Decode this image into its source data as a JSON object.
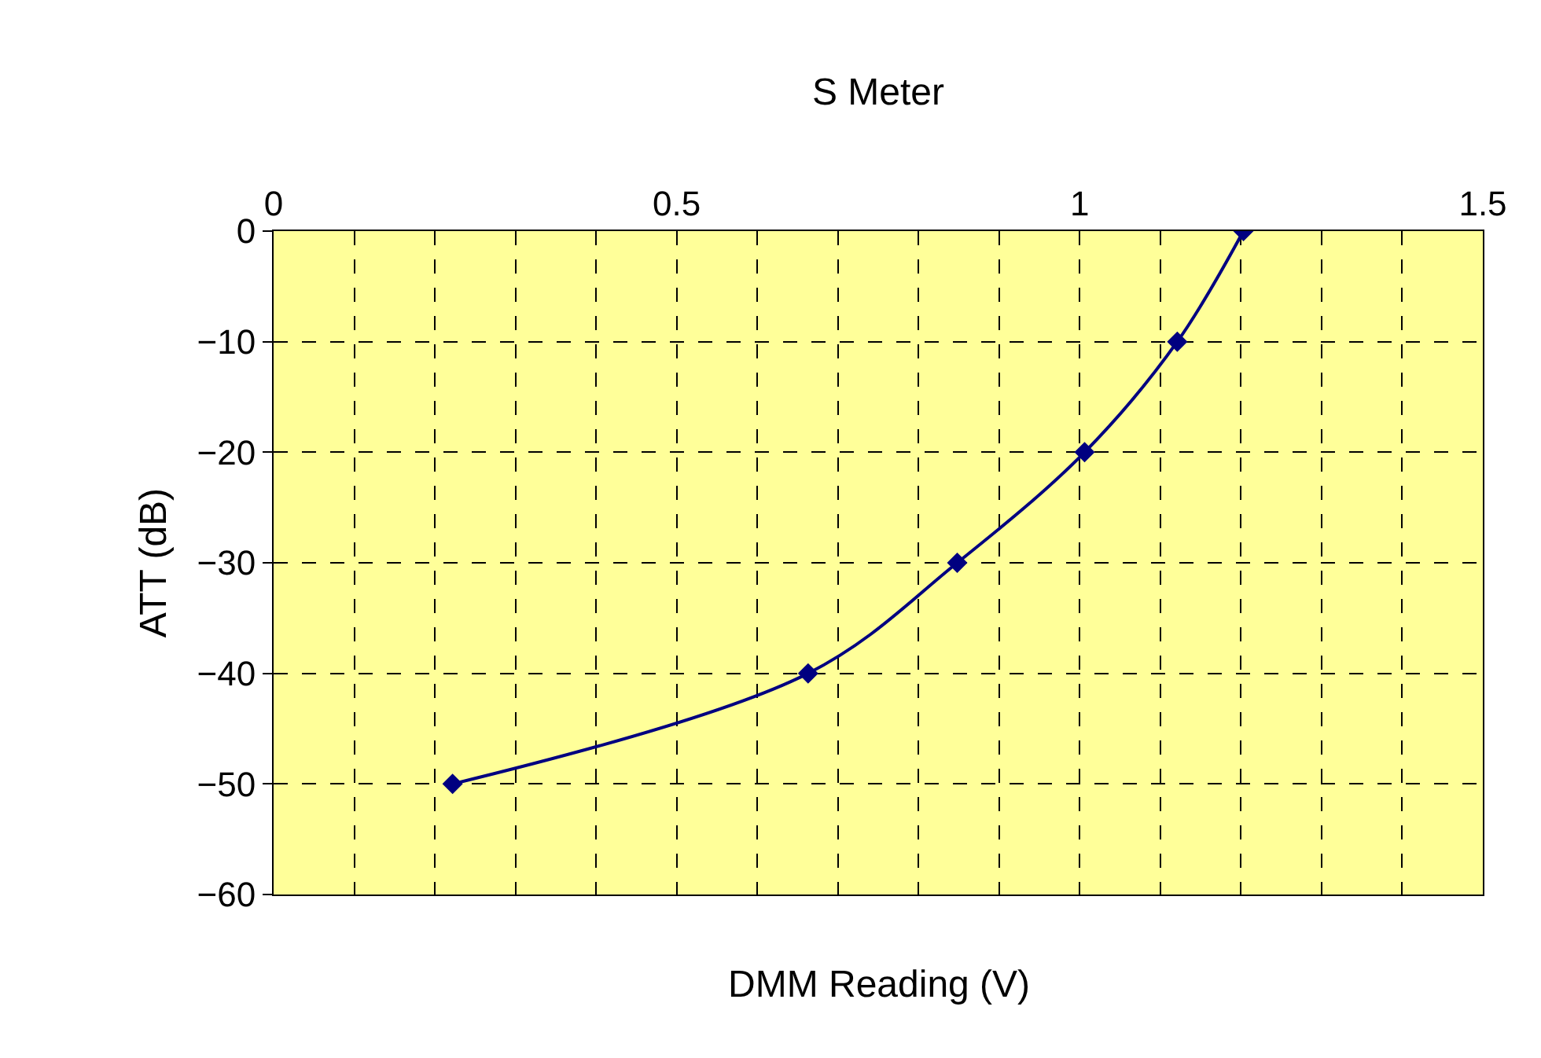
{
  "chart_data": {
    "type": "line",
    "title": "S Meter",
    "xlabel": "DMM Reading (V)",
    "ylabel": "ATT (dB)",
    "x": [
      0.222,
      0.663,
      0.848,
      1.006,
      1.121,
      1.203
    ],
    "series": [
      {
        "color": "#000080",
        "values": [
          -50,
          -40,
          -30,
          -20,
          -10,
          0
        ]
      }
    ],
    "xlim": [
      0,
      1.5
    ],
    "xticks": [
      0,
      {
        "value": 0.1,
        "label": null
      },
      {
        "value": 0.2,
        "label": null
      },
      {
        "value": 0.3,
        "label": null
      },
      {
        "value": 0.4,
        "label": null
      },
      0.5,
      {
        "value": 0.6,
        "label": null
      },
      {
        "value": 0.7,
        "label": null
      },
      {
        "value": 0.8,
        "label": null
      },
      {
        "value": 0.9,
        "label": null
      },
      1,
      {
        "value": 1.1,
        "label": null
      },
      {
        "value": 1.2,
        "label": null
      },
      {
        "value": 1.3,
        "label": null
      },
      {
        "value": 1.4,
        "label": null
      },
      1.5
    ],
    "ylim": [
      -60,
      0
    ],
    "yticks": [
      -60,
      -50,
      -40,
      -30,
      -20,
      -10,
      0
    ],
    "grid": true,
    "marker": "diamond",
    "line_style": "solid"
  }
}
